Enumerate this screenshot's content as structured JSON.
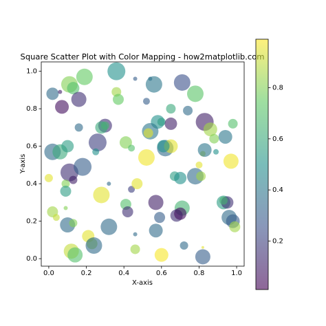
{
  "chart_data": {
    "type": "scatter",
    "title": "Square Scatter Plot with Color Mapping - how2matplotlib.com",
    "xlabel": "X-axis",
    "ylabel": "Y-axis",
    "x": [
      0.36,
      0.19,
      0.02,
      0.07,
      0.11,
      0.13,
      0.16,
      0.06,
      0.36,
      0.37,
      0.46,
      0.54,
      0.56,
      0.71,
      0.78,
      0.52,
      0.74,
      0.83,
      0.86,
      0.98,
      0.94,
      0.88,
      0.65,
      0.58,
      0.6,
      0.65,
      0.54,
      0.53,
      0.62,
      0.65,
      0.61,
      0.3,
      0.28,
      0.3,
      0.26,
      0.41,
      0.44,
      0.16,
      0.02,
      0.06,
      0.1,
      0.11,
      0.18,
      0.13,
      0.0,
      0.09,
      0.09,
      0.25,
      0.28,
      0.32,
      0.44,
      0.47,
      0.52,
      0.67,
      0.7,
      0.78,
      0.81,
      0.8,
      0.82,
      0.83,
      0.89,
      0.97,
      0.41,
      0.42,
      0.57,
      0.59,
      0.71,
      0.68,
      0.7,
      0.57,
      0.32,
      0.46,
      0.46,
      0.6,
      0.72,
      0.82,
      0.82,
      0.93,
      0.95,
      0.96,
      0.98,
      0.99,
      0.93,
      0.1,
      0.13,
      0.02,
      0.04,
      0.21,
      0.23,
      0.24,
      0.12,
      0.14,
      0.09
    ],
    "y": [
      1.0,
      0.97,
      0.88,
      0.81,
      0.93,
      0.91,
      0.85,
      0.89,
      0.89,
      0.85,
      0.96,
      0.96,
      0.93,
      0.94,
      0.88,
      0.84,
      0.79,
      0.73,
      0.69,
      0.72,
      0.65,
      0.64,
      0.8,
      0.73,
      0.73,
      0.72,
      0.68,
      0.67,
      0.59,
      0.6,
      0.6,
      0.71,
      0.7,
      0.71,
      0.62,
      0.62,
      0.59,
      0.7,
      0.57,
      0.57,
      0.6,
      0.46,
      0.49,
      0.42,
      0.43,
      0.4,
      0.36,
      0.57,
      0.34,
      0.4,
      0.37,
      0.4,
      0.54,
      0.44,
      0.43,
      0.44,
      0.44,
      0.5,
      0.56,
      0.58,
      0.57,
      0.52,
      0.29,
      0.25,
      0.3,
      0.22,
      0.27,
      0.23,
      0.24,
      0.15,
      0.17,
      0.13,
      0.05,
      0.02,
      0.07,
      0.01,
      0.06,
      0.3,
      0.3,
      0.22,
      0.2,
      0.17,
      0.31,
      0.18,
      0.19,
      0.25,
      0.22,
      0.12,
      0.08,
      0.07,
      0.04,
      0.02,
      0.27
    ],
    "sizes": [
      676,
      576,
      324,
      400,
      576,
      324,
      484,
      36,
      196,
      256,
      36,
      36,
      576,
      576,
      576,
      100,
      196,
      676,
      400,
      196,
      400,
      196,
      196,
      400,
      144,
      324,
      576,
      196,
      576,
      400,
      324,
      400,
      324,
      144,
      676,
      324,
      100,
      144,
      576,
      484,
      324,
      676,
      676,
      144,
      144,
      144,
      256,
      100,
      576,
      36,
      100,
      256,
      576,
      196,
      324,
      576,
      196,
      100,
      64,
      400,
      64,
      484,
      256,
      256,
      484,
      256,
      484,
      324,
      324,
      400,
      576,
      36,
      196,
      400,
      144,
      484,
      16,
      400,
      324,
      484,
      400,
      256,
      144,
      484,
      144,
      256,
      100,
      324,
      256,
      576,
      484,
      484,
      36
    ],
    "c": [
      0.5,
      0.75,
      0.35,
      0.05,
      0.8,
      0.7,
      0.15,
      0.1,
      0.85,
      0.75,
      0.3,
      0.35,
      0.4,
      0.25,
      0.72,
      0.3,
      0.35,
      0.1,
      0.85,
      0.7,
      0.4,
      0.8,
      0.6,
      0.5,
      0.55,
      0.1,
      0.4,
      0.95,
      0.35,
      0.95,
      0.5,
      0.15,
      0.6,
      0.65,
      0.2,
      0.8,
      0.7,
      0.35,
      0.35,
      0.6,
      0.55,
      0.15,
      0.3,
      0.1,
      0.95,
      0.8,
      0.55,
      0.5,
      0.95,
      0.35,
      0.2,
      0.95,
      0.97,
      0.55,
      0.5,
      0.35,
      0.85,
      0.95,
      0.9,
      0.4,
      0.5,
      0.97,
      0.7,
      0.15,
      0.1,
      0.3,
      0.65,
      0.15,
      0.05,
      0.35,
      0.35,
      0.35,
      0.85,
      0.98,
      0.35,
      0.3,
      0.95,
      0.55,
      0.15,
      0.35,
      0.3,
      0.85,
      0.65,
      0.35,
      0.8,
      0.85,
      0.9,
      0.95,
      0.85,
      0.35,
      0.9,
      0.7,
      0.8
    ],
    "colormap": "viridis",
    "alpha": 0.6,
    "clim": [
      0.01,
      0.99
    ],
    "colorbar_ticks": [
      0.2,
      0.4,
      0.6,
      0.8
    ],
    "xlim": [
      -0.04,
      1.04
    ],
    "xticks": [
      {
        "value": 0,
        "label": "0.0"
      },
      0.2,
      0.4,
      0.6,
      0.8,
      {
        "value": 1,
        "label": "1.0"
      }
    ],
    "ylim": [
      -0.04,
      1.05
    ],
    "yticks": [
      {
        "value": 0,
        "label": "0.0"
      },
      0.2,
      0.4,
      0.6,
      0.8,
      {
        "value": 1,
        "label": "1.0"
      }
    ]
  }
}
